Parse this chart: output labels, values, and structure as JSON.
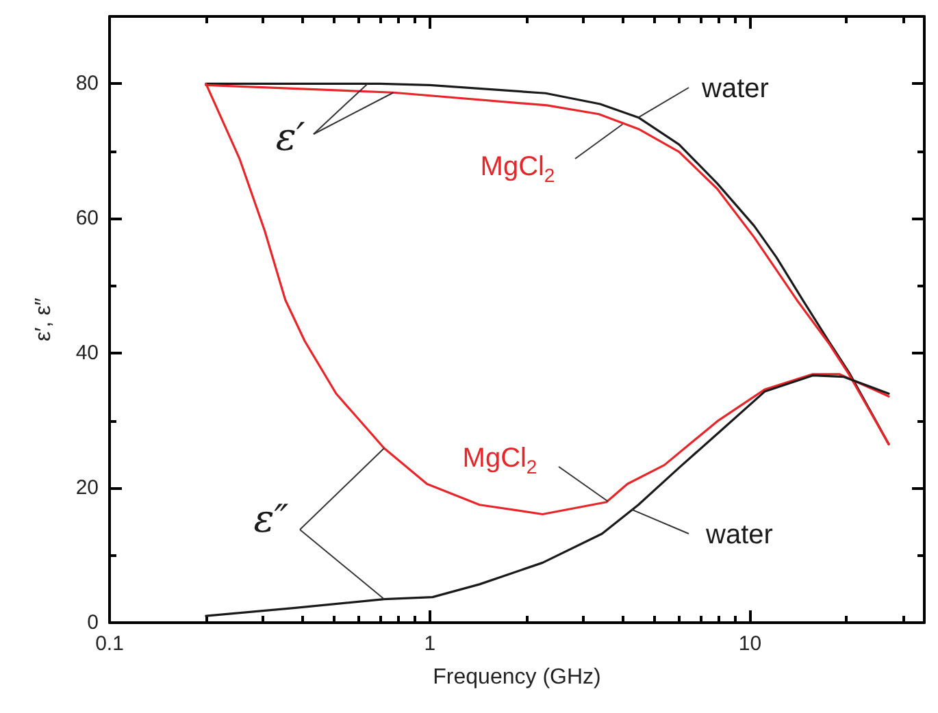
{
  "chart_data": {
    "type": "line",
    "xlabel": "Frequency (GHz)",
    "ylabel": "ε′, ε″",
    "log": "x",
    "xlim": [
      0.1,
      35
    ],
    "ylim": [
      0,
      90
    ],
    "xticks": [
      0.1,
      {
        "value": 0.2,
        "label": null
      },
      {
        "value": 0.3,
        "label": null
      },
      {
        "value": 0.4,
        "label": null
      },
      {
        "value": 0.5,
        "label": null
      },
      {
        "value": 0.6,
        "label": null
      },
      {
        "value": 0.7,
        "label": null
      },
      {
        "value": 0.8,
        "label": null
      },
      {
        "value": 0.9,
        "label": null
      },
      1,
      {
        "value": 2,
        "label": null
      },
      {
        "value": 3,
        "label": null
      },
      {
        "value": 4,
        "label": null
      },
      {
        "value": 5,
        "label": null
      },
      {
        "value": 6,
        "label": null
      },
      {
        "value": 7,
        "label": null
      },
      {
        "value": 8,
        "label": null
      },
      {
        "value": 9,
        "label": null
      },
      10,
      {
        "value": 20,
        "label": null
      },
      {
        "value": 30,
        "label": null
      }
    ],
    "yticks": [
      0,
      {
        "value": 10,
        "label": null
      },
      20,
      {
        "value": 30,
        "label": null
      },
      40,
      {
        "value": 50,
        "label": null
      },
      60,
      {
        "value": 70,
        "label": null
      },
      80
    ],
    "grid": false,
    "marker": "none",
    "line_style": "solid",
    "series": [
      {
        "color": "#1a1a1a",
        "x": [
          0.2,
          0.7,
          1,
          2.3,
          3.4,
          4.48,
          6.0,
          7.9,
          10.3,
          12.1,
          14.6,
          17.6,
          20.4,
          27.1
        ],
        "values": [
          80,
          80,
          79.8,
          78.6,
          77,
          75,
          71,
          65.2,
          58.9,
          54.2,
          47.9,
          41.8,
          37.1,
          26.5
        ]
      },
      {
        "color": "#e8262a",
        "x": [
          0.2,
          0.77,
          2.32,
          3.37,
          4.48,
          6.0,
          7.9,
          10.3,
          14.0,
          17.6,
          20.4,
          27.1
        ],
        "values": [
          79.8,
          78.7,
          76.8,
          75.5,
          73.3,
          69.9,
          64.4,
          57.2,
          47.9,
          41.5,
          36.8,
          26.5
        ]
      },
      {
        "color": "#e8262a",
        "x": [
          0.2,
          0.255,
          0.305,
          0.354,
          0.407,
          0.51,
          0.72,
          0.98,
          1.43,
          2.25,
          3.56,
          4.14,
          5.4,
          7.9,
          11.1,
          15.7,
          19,
          27.1
        ],
        "values": [
          80,
          68.8,
          58.2,
          47.9,
          41.8,
          34,
          25.9,
          20.6,
          17.5,
          16.1,
          17.9,
          20.6,
          23.4,
          29.9,
          34.6,
          36.9,
          36.9,
          33.6
        ]
      },
      {
        "color": "#1a1a1a",
        "x": [
          0.2,
          0.38,
          0.72,
          1.02,
          1.43,
          2.25,
          3.45,
          4.48,
          6.0,
          8.1,
          11.1,
          15.7,
          19.6,
          27.1
        ],
        "values": [
          1,
          2.2,
          3.5,
          3.8,
          5.7,
          8.9,
          13.2,
          17.5,
          23,
          28.5,
          34.3,
          36.7,
          36.5,
          34
        ]
      }
    ],
    "annotations": [
      {
        "text": "water",
        "x": 4.48,
        "y": 75
      },
      {
        "text": "MgCl$_{2}$",
        "x": 4.0,
        "y": 74
      },
      {
        "text": "ε′",
        "x": 0.77,
        "y": 78.7
      },
      {
        "text": "MgCl$_{2}$",
        "x": 3.6,
        "y": 18
      },
      {
        "text": "water",
        "x": 4.27,
        "y": 16.8
      },
      {
        "text": "ε″",
        "x": 0.72,
        "y": 25.9
      }
    ]
  }
}
